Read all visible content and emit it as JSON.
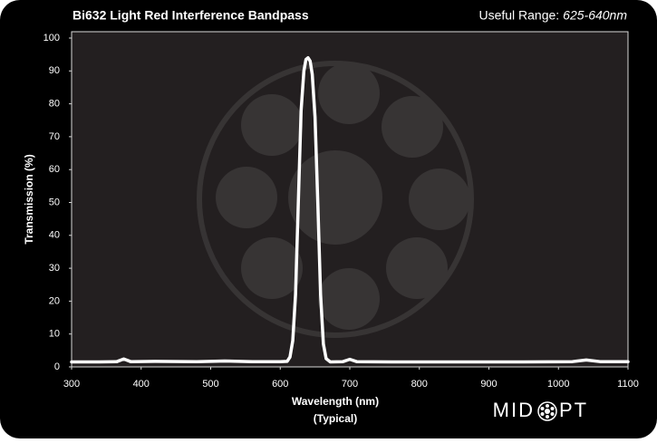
{
  "chart_data": {
    "type": "line",
    "title": "Bi632 Light Red Interference Bandpass",
    "range_label": "Useful Range:",
    "range_value": "625-640nm",
    "xlabel": "Wavelength (nm)",
    "xlabel_note": "(Typical)",
    "ylabel": "Transmission (%)",
    "logo_left": "MID",
    "logo_right": "PT",
    "x": [
      300,
      340,
      365,
      375,
      385,
      420,
      480,
      520,
      560,
      600,
      610,
      614,
      618,
      622,
      626,
      630,
      634,
      637,
      640,
      643,
      646,
      650,
      654,
      658,
      662,
      666,
      672,
      690,
      700,
      710,
      760,
      850,
      950,
      1020,
      1040,
      1060,
      1100
    ],
    "values": [
      1.5,
      1.5,
      1.6,
      2.4,
      1.6,
      1.7,
      1.6,
      1.8,
      1.6,
      1.6,
      1.7,
      3,
      8,
      22,
      50,
      78,
      90,
      93.5,
      94,
      93,
      89,
      76,
      50,
      22,
      7,
      2.5,
      1.5,
      1.6,
      2.3,
      1.6,
      1.5,
      1.5,
      1.5,
      1.6,
      2.1,
      1.6,
      1.6
    ],
    "color": "#ffffff",
    "xlim": [
      300,
      1100
    ],
    "xticks": [
      300,
      400,
      500,
      600,
      700,
      800,
      900,
      1000,
      1100
    ],
    "ylim": [
      0,
      100
    ],
    "yticks": [
      0,
      10,
      20,
      30,
      40,
      50,
      60,
      70,
      80,
      90,
      100
    ]
  }
}
